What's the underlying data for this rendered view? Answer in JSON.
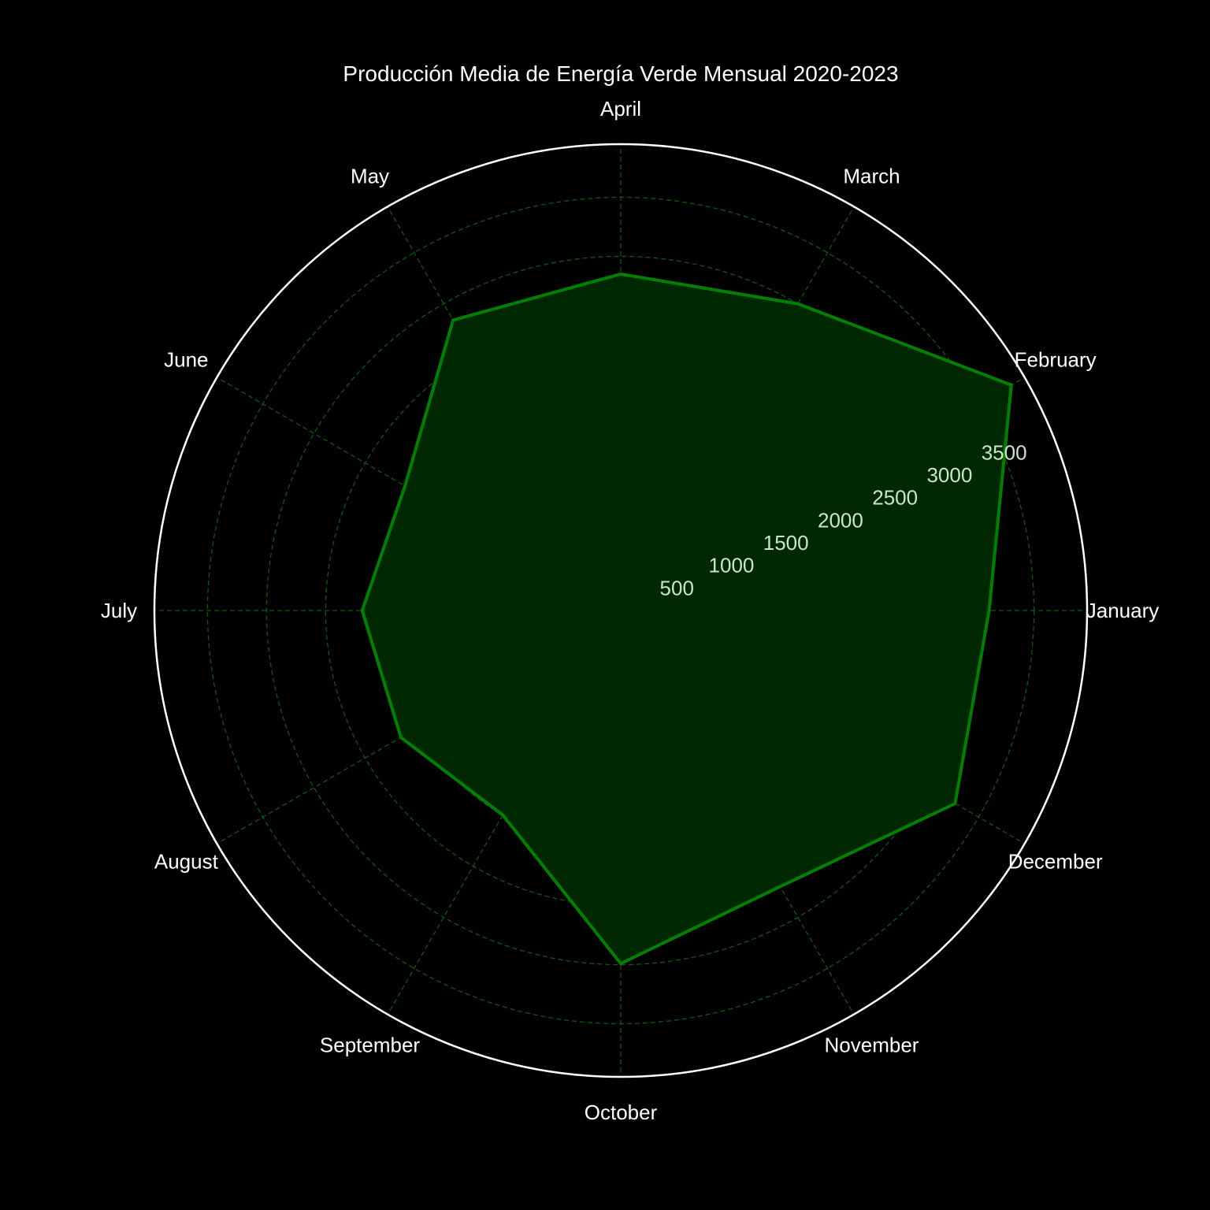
{
  "chart_data": {
    "type": "radar",
    "title": "Producción Media de Energía Verde Mensual 2020-2023",
    "categories": [
      "January",
      "February",
      "March",
      "April",
      "May",
      "June",
      "July",
      "August",
      "September",
      "October",
      "November",
      "December"
    ],
    "series": [
      {
        "values": [
          3120,
          3820,
          3000,
          2850,
          2840,
          2110,
          2190,
          2150,
          2000,
          2990,
          2700,
          3270
        ]
      }
    ],
    "r_ticks": [
      500,
      1000,
      1500,
      2000,
      2500,
      3000,
      3500
    ],
    "r_tick_labels": [
      "500",
      "1000",
      "1500",
      "2000",
      "2500",
      "3000",
      "3500"
    ],
    "rlim": [
      0,
      3950
    ],
    "grid": true,
    "colors": {
      "background": "#000000",
      "line": "#008000",
      "fill": "#002800",
      "grid": "#0c5a0c",
      "outer_ring": "#ffffff",
      "text": "#ffffff",
      "tick_text": "#c8e6c8"
    }
  }
}
